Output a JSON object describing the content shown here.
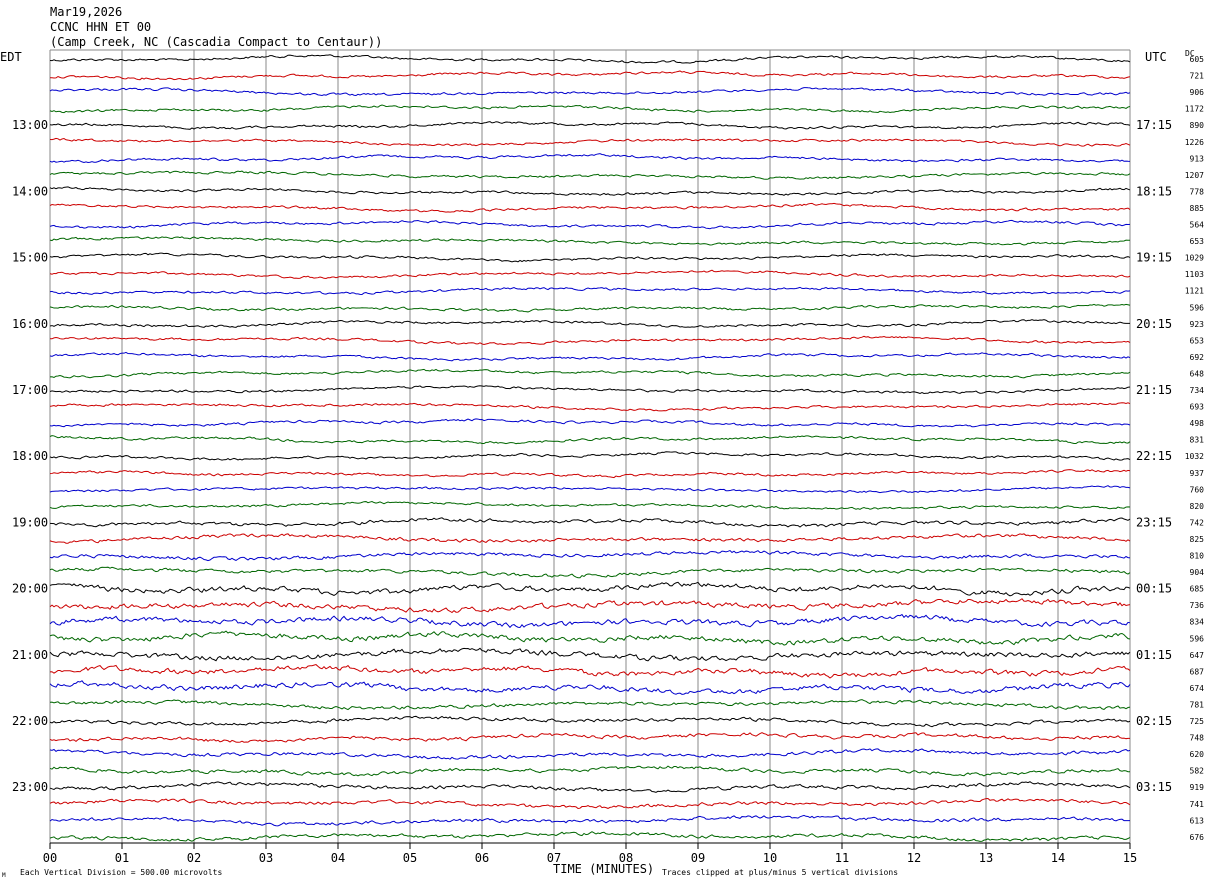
{
  "chart_data": {
    "type": "line",
    "title_lines": [
      "Mar19,2026",
      "CCNC HHN ET 00",
      "(Camp Creek, NC (Cascadia Compact to Centaur))"
    ],
    "left_axis_label": "EDT",
    "right_axis_label": "UTC",
    "dc_label": "DC",
    "xlabel": "TIME (MINUTES)",
    "x_tick_labels": [
      "00",
      "01",
      "02",
      "03",
      "04",
      "05",
      "06",
      "07",
      "08",
      "09",
      "10",
      "11",
      "12",
      "13",
      "14",
      "15"
    ],
    "xlim": [
      0,
      15
    ],
    "left_hour_labels": [
      "13:00",
      "14:00",
      "15:00",
      "16:00",
      "17:00",
      "18:00",
      "19:00",
      "20:00",
      "21:00",
      "22:00",
      "23:00"
    ],
    "right_hour_labels": [
      "17:15",
      "18:15",
      "19:15",
      "20:15",
      "21:15",
      "22:15",
      "23:15",
      "00:15",
      "01:15",
      "02:15",
      "03:15"
    ],
    "first_labeled_trace": 4,
    "traces_per_hour": 4,
    "trace_colors": [
      "#000000",
      "#cc0000",
      "#0000cc",
      "#006600"
    ],
    "dc_values": [
      605,
      721,
      906,
      1172,
      890,
      1226,
      913,
      1207,
      778,
      885,
      564,
      653,
      1029,
      1103,
      1121,
      596,
      923,
      653,
      692,
      648,
      734,
      693,
      498,
      831,
      1032,
      937,
      760,
      820,
      742,
      825,
      810,
      904,
      685,
      736,
      834,
      596,
      647,
      687,
      674,
      781,
      725,
      748,
      620,
      582,
      919,
      741,
      613,
      676
    ],
    "grid": true,
    "footer_left": "Each Vertical Division =  500.00 microvolts",
    "footer_right": "Traces clipped at plus/minus 5 vertical divisions",
    "corner_mark": "M"
  }
}
